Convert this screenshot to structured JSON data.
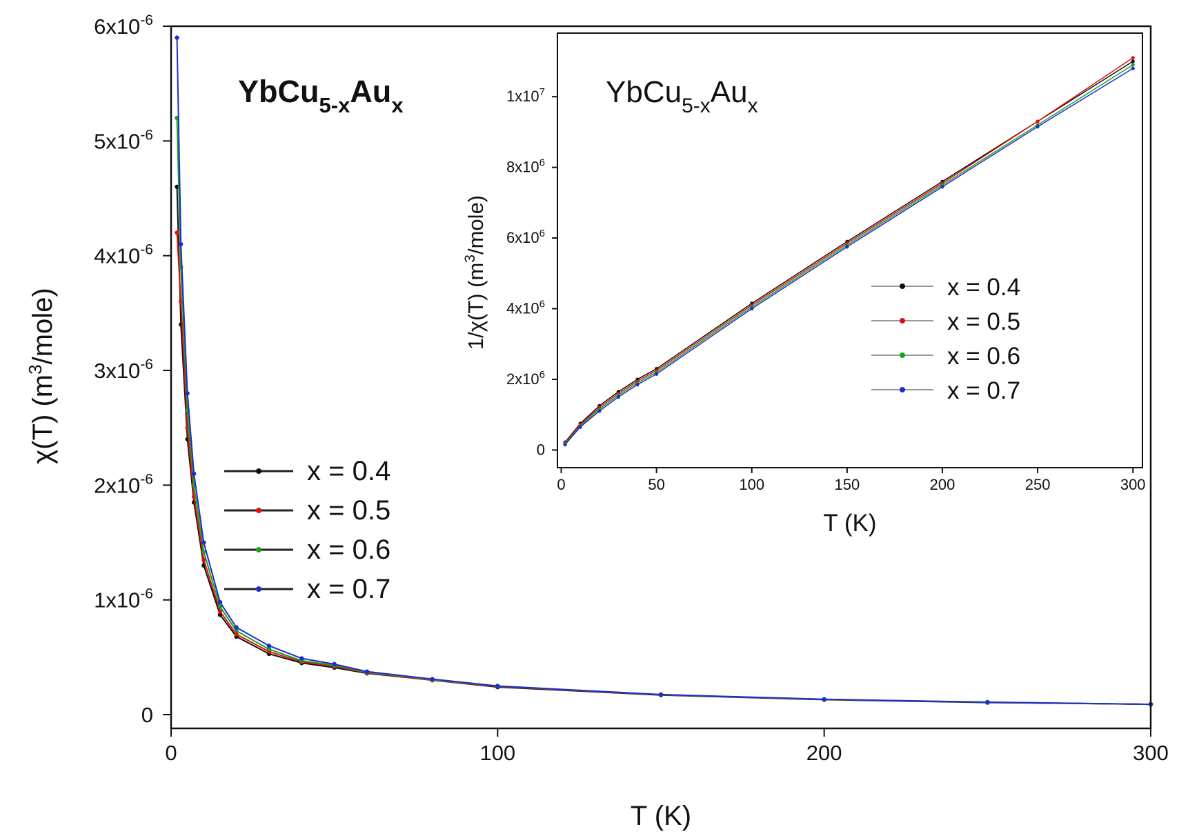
{
  "chart_data": [
    {
      "panel": "main",
      "type": "scatter",
      "title": {
        "base": "YbCu",
        "sub1": "5-x",
        "mid": "Au",
        "sub2": "x"
      },
      "xlabel": "T (K)",
      "ylabel": {
        "pre": "χ(T)  (m",
        "sup": "3",
        "post": "/mole)"
      },
      "xlim": [
        0,
        300
      ],
      "ylim": [
        -1.2e-07,
        6e-06
      ],
      "x_ticks": [
        {
          "value": 0,
          "label": "0"
        },
        {
          "value": 100,
          "label": "100"
        },
        {
          "value": 200,
          "label": "200"
        },
        {
          "value": 300,
          "label": "300"
        }
      ],
      "y_ticks": [
        {
          "value": 0,
          "label": "0"
        },
        {
          "value": 1e-06,
          "mantissa": "1x10",
          "exponent": "-6"
        },
        {
          "value": 2e-06,
          "mantissa": "2x10",
          "exponent": "-6"
        },
        {
          "value": 3e-06,
          "mantissa": "3x10",
          "exponent": "-6"
        },
        {
          "value": 4e-06,
          "mantissa": "4x10",
          "exponent": "-6"
        },
        {
          "value": 5e-06,
          "mantissa": "5x10",
          "exponent": "-6"
        },
        {
          "value": 6e-06,
          "mantissa": "6x10",
          "exponent": "-6"
        }
      ],
      "legend_position": "center-right",
      "series": [
        {
          "name": "x = 0.4",
          "color": "#111111",
          "x": [
            1.8,
            3,
            5,
            7,
            10,
            15,
            20,
            30,
            40,
            50,
            60,
            80,
            100,
            150,
            200,
            250,
            300
          ],
          "y": [
            4.6e-06,
            3.4e-06,
            2.4e-06,
            1.85e-06,
            1.3e-06,
            8.7e-07,
            6.8e-07,
            5.3e-07,
            4.5e-07,
            4.1e-07,
            3.6e-07,
            3e-07,
            2.4e-07,
            1.7e-07,
            1.3e-07,
            1.05e-07,
            9e-08
          ]
        },
        {
          "name": "x = 0.5",
          "color": "#e01010",
          "x": [
            1.8,
            3,
            5,
            7,
            10,
            15,
            20,
            30,
            40,
            50,
            60,
            80,
            100,
            150,
            200,
            250,
            300
          ],
          "y": [
            4.2e-06,
            3.6e-06,
            2.5e-06,
            1.9e-06,
            1.35e-06,
            9e-07,
            7e-07,
            5.5e-07,
            4.6e-07,
            4.2e-07,
            3.65e-07,
            3e-07,
            2.45e-07,
            1.72e-07,
            1.32e-07,
            1.07e-07,
            9e-08
          ]
        },
        {
          "name": "x = 0.6",
          "color": "#1ea01e",
          "x": [
            1.8,
            3,
            5,
            7,
            10,
            15,
            20,
            30,
            40,
            50,
            60,
            80,
            100,
            150,
            200,
            250,
            300
          ],
          "y": [
            5.2e-06,
            3.9e-06,
            2.65e-06,
            2e-06,
            1.42e-06,
            9.4e-07,
            7.3e-07,
            5.7e-07,
            4.7e-07,
            4.3e-07,
            3.7e-07,
            3.05e-07,
            2.48e-07,
            1.74e-07,
            1.33e-07,
            1.08e-07,
            9e-08
          ]
        },
        {
          "name": "x = 0.7",
          "color": "#1a2fd0",
          "x": [
            1.8,
            3,
            5,
            7,
            10,
            15,
            20,
            30,
            40,
            50,
            60,
            80,
            100,
            150,
            200,
            250,
            300
          ],
          "y": [
            5.9e-06,
            4.1e-06,
            2.8e-06,
            2.1e-06,
            1.5e-06,
            9.8e-07,
            7.6e-07,
            6e-07,
            4.9e-07,
            4.4e-07,
            3.75e-07,
            3.1e-07,
            2.5e-07,
            1.75e-07,
            1.34e-07,
            1.09e-07,
            9e-08
          ]
        }
      ]
    },
    {
      "panel": "inset",
      "type": "scatter",
      "title": {
        "base": "YbCu",
        "sub1": "5-x",
        "mid": "Au",
        "sub2": "x"
      },
      "xlabel": "T (K)",
      "ylabel": {
        "pre": "1/χ(T)  (m",
        "sup": "3",
        "post": "/mole)"
      },
      "xlim": [
        -2,
        305
      ],
      "ylim": [
        -500000.0,
        11800000.0
      ],
      "x_ticks": [
        {
          "value": 0,
          "label": "0"
        },
        {
          "value": 50,
          "label": "50"
        },
        {
          "value": 100,
          "label": "100"
        },
        {
          "value": 150,
          "label": "150"
        },
        {
          "value": 200,
          "label": "200"
        },
        {
          "value": 250,
          "label": "250"
        },
        {
          "value": 300,
          "label": "300"
        }
      ],
      "y_ticks": [
        {
          "value": 0,
          "label": "0"
        },
        {
          "value": 2000000.0,
          "mantissa": "2x10",
          "exponent": "6"
        },
        {
          "value": 4000000.0,
          "mantissa": "4x10",
          "exponent": "6"
        },
        {
          "value": 6000000.0,
          "mantissa": "6x10",
          "exponent": "6"
        },
        {
          "value": 8000000.0,
          "mantissa": "8x10",
          "exponent": "6"
        },
        {
          "value": 10000000.0,
          "mantissa": "1x10",
          "exponent": "7"
        }
      ],
      "legend_position": "center-right",
      "series": [
        {
          "name": "x = 0.4",
          "color": "#111111",
          "x": [
            2,
            10,
            20,
            30,
            40,
            50,
            100,
            150,
            200,
            250,
            300
          ],
          "y": [
            220000.0,
            750000.0,
            1250000.0,
            1650000.0,
            2000000.0,
            2300000.0,
            4150000.0,
            5900000.0,
            7600000.0,
            9300000.0,
            11000000.0
          ]
        },
        {
          "name": "x = 0.5",
          "color": "#e01010",
          "x": [
            2,
            10,
            20,
            30,
            40,
            50,
            100,
            150,
            200,
            250,
            300
          ],
          "y": [
            200000.0,
            720000.0,
            1200000.0,
            1600000.0,
            1950000.0,
            2250000.0,
            4100000.0,
            5850000.0,
            7550000.0,
            9300000.0,
            11100000.0
          ]
        },
        {
          "name": "x = 0.6",
          "color": "#1ea01e",
          "x": [
            2,
            10,
            20,
            30,
            40,
            50,
            100,
            150,
            200,
            250,
            300
          ],
          "y": [
            170000.0,
            680000.0,
            1150000.0,
            1550000.0,
            1900000.0,
            2200000.0,
            4050000.0,
            5800000.0,
            7500000.0,
            9200000.0,
            10900000.0
          ]
        },
        {
          "name": "x = 0.7",
          "color": "#1a2fd0",
          "x": [
            2,
            10,
            20,
            30,
            40,
            50,
            100,
            150,
            200,
            250,
            300
          ],
          "y": [
            150000.0,
            650000.0,
            1100000.0,
            1500000.0,
            1850000.0,
            2150000.0,
            4000000.0,
            5750000.0,
            7450000.0,
            9150000.0,
            10800000.0
          ]
        }
      ]
    }
  ]
}
